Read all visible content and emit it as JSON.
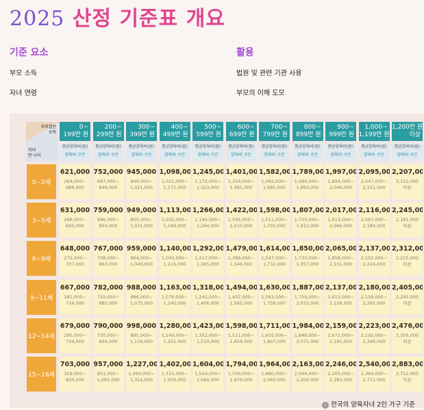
{
  "title": {
    "year": "2025",
    "rest": "산정 기준표 개요"
  },
  "sections": {
    "left": {
      "heading": "기준 요소",
      "items": [
        "부모 소득",
        "자녀 연령"
      ]
    },
    "right": {
      "heading": "활용",
      "items": [
        "법원 및 관련 기관 사용",
        "부모의 이해 도모"
      ]
    }
  },
  "table": {
    "corner_top": "부모합산\n소득",
    "corner_bottom": "자녀\n만 나이",
    "subheader_a": "평균양육비(원)",
    "subheader_b": "양육비 구간",
    "columns": [
      {
        "line1": "0~",
        "line2": "199만 원"
      },
      {
        "line1": "200~",
        "line2": "299만 원"
      },
      {
        "line1": "300~",
        "line2": "399만 원"
      },
      {
        "line1": "400~",
        "line2": "499만 원"
      },
      {
        "line1": "500~",
        "line2": "599만 원"
      },
      {
        "line1": "600~",
        "line2": "699만 원"
      },
      {
        "line1": "700~",
        "line2": "799만 원"
      },
      {
        "line1": "800~",
        "line2": "899만 원"
      },
      {
        "line1": "900~",
        "line2": "999만 원"
      },
      {
        "line1": "1,000~",
        "line2": "1,199만 원"
      },
      {
        "line1": "1,200만 원",
        "line2": "이상"
      }
    ],
    "rows": [
      {
        "label": "0~2세",
        "cells": [
          {
            "v": "621,000",
            "r1": "264,000~",
            "r2": "686,000"
          },
          {
            "v": "752,000",
            "r1": "687,000~",
            "r2": "848,000"
          },
          {
            "v": "945,000",
            "r1": "849,000~",
            "r2": "1,021,000"
          },
          {
            "v": "1,098,000",
            "r1": "1,022,000~",
            "r2": "1,171,000"
          },
          {
            "v": "1,245,000",
            "r1": "1,172,000~",
            "r2": "1,323,000"
          },
          {
            "v": "1,401,000",
            "r1": "1,324,000~",
            "r2": "1,491,000"
          },
          {
            "v": "1,582,000",
            "r1": "1,492,000~",
            "r2": "1,685,000"
          },
          {
            "v": "1,789,000",
            "r1": "1,686,000~",
            "r2": "1,893,000"
          },
          {
            "v": "1,997,000",
            "r1": "1,894,000~",
            "r2": "2,046,000"
          },
          {
            "v": "2,095,000",
            "r1": "2,047,000~",
            "r2": "2,151,000"
          },
          {
            "v": "2,207,000",
            "r1": "2,152,000",
            "r2": "이상"
          }
        ]
      },
      {
        "label": "3~5세",
        "cells": [
          {
            "v": "631,000",
            "r1": "268,000~",
            "r2": "695,000"
          },
          {
            "v": "759,000",
            "r1": "696,000~",
            "r2": "854,000"
          },
          {
            "v": "949,000",
            "r1": "855,000~",
            "r2": "1,031,000"
          },
          {
            "v": "1,113,000",
            "r1": "1,032,000~",
            "r2": "1,189,000"
          },
          {
            "v": "1,266,000",
            "r1": "1,190,000~",
            "r2": "1,344,000"
          },
          {
            "v": "1,422,000",
            "r1": "1,345,000~",
            "r2": "1,510,000"
          },
          {
            "v": "1,598,000",
            "r1": "1,511,000~",
            "r2": "1,702,000"
          },
          {
            "v": "1,807,000",
            "r1": "1,703,000~",
            "r2": "1,912,000"
          },
          {
            "v": "2,017,000",
            "r1": "1,913,000~",
            "r2": "2,066,000"
          },
          {
            "v": "2,116,000",
            "r1": "2,067,000~",
            "r2": "2,180,000"
          },
          {
            "v": "2,245,000",
            "r1": "2,181,000",
            "r2": "이상"
          }
        ]
      },
      {
        "label": "6~8세",
        "cells": [
          {
            "v": "648,000",
            "r1": "272,000~",
            "r2": "707,000"
          },
          {
            "v": "767,000",
            "r1": "708,000~",
            "r2": "863,000"
          },
          {
            "v": "959,000",
            "r1": "864,000~",
            "r2": "1,049,000"
          },
          {
            "v": "1,140,000",
            "r1": "1,050,000~",
            "r2": "1,216,000"
          },
          {
            "v": "1,292,000",
            "r1": "1,217,000~",
            "r2": "1,385,000"
          },
          {
            "v": "1,479,000",
            "r1": "1,386,000~",
            "r2": "1,546,000"
          },
          {
            "v": "1,614,000",
            "r1": "1,547,000~",
            "r2": "1,732,000"
          },
          {
            "v": "1,850,000",
            "r1": "1,733,000~",
            "r2": "1,957,000"
          },
          {
            "v": "2,065,000",
            "r1": "1,958,000~",
            "r2": "2,101,000"
          },
          {
            "v": "2,137,000",
            "r1": "2,102,000~",
            "r2": "2,224,000"
          },
          {
            "v": "2,312,000",
            "r1": "2,225,000",
            "r2": "이상"
          }
        ]
      },
      {
        "label": "9~11세",
        "cells": [
          {
            "v": "667,000",
            "r1": "281,000~",
            "r2": "724,000"
          },
          {
            "v": "782,000",
            "r1": "725,000~",
            "r2": "885,000"
          },
          {
            "v": "988,000",
            "r1": "886,000~",
            "r2": "1,075,000"
          },
          {
            "v": "1,163,000",
            "r1": "1,076,000~",
            "r2": "1,240,000"
          },
          {
            "v": "1,318,000",
            "r1": "1,241,000~",
            "r2": "1,406,000"
          },
          {
            "v": "1,494,000",
            "r1": "1,407,000~",
            "r2": "1,562,000"
          },
          {
            "v": "1,630,000",
            "r1": "1,563,000~",
            "r2": "1,758,000"
          },
          {
            "v": "1,887,000",
            "r1": "1,759,000~",
            "r2": "2,012,000"
          },
          {
            "v": "2,137,000",
            "r1": "2,013,000~",
            "r2": "2,158,000"
          },
          {
            "v": "2,180,000",
            "r1": "2,159,000~",
            "r2": "2,292,000"
          },
          {
            "v": "2,405,000",
            "r1": "2,293,000",
            "r2": "이상"
          }
        ]
      },
      {
        "label": "12~14세",
        "cells": [
          {
            "v": "679,000",
            "r1": "295,000~",
            "r2": "734,000"
          },
          {
            "v": "790,000",
            "r1": "735,000~",
            "r2": "894,000"
          },
          {
            "v": "998,000",
            "r1": "895,000~",
            "r2": "1,139,000"
          },
          {
            "v": "1,280,000",
            "r1": "1,140,000~",
            "r2": "1,351,000"
          },
          {
            "v": "1,423,000",
            "r1": "1,352,000~",
            "r2": "1,510,000"
          },
          {
            "v": "1,598,000",
            "r1": "1,511,000~",
            "r2": "1,654,000"
          },
          {
            "v": "1,711,000",
            "r1": "1,655,000~",
            "r2": "1,847,000"
          },
          {
            "v": "1,984,000",
            "r1": "1,848,000~",
            "r2": "2,071,000"
          },
          {
            "v": "2,159,000",
            "r1": "2,072,000~",
            "r2": "2,191,000"
          },
          {
            "v": "2,223,000",
            "r1": "2,192,000~",
            "r2": "2,349,000"
          },
          {
            "v": "2,476,000",
            "r1": "2,350,000",
            "r2": "이상"
          }
        ]
      },
      {
        "label": "15~18세",
        "cells": [
          {
            "v": "703,000",
            "r1": "319,000~",
            "r2": "830,000"
          },
          {
            "v": "957,000",
            "r1": "831,000~",
            "r2": "1,092,000"
          },
          {
            "v": "1,227,000",
            "r1": "1,093,000~",
            "r2": "1,314,000"
          },
          {
            "v": "1,402,000",
            "r1": "1,315,000~",
            "r2": "1,503,000"
          },
          {
            "v": "1,604,000",
            "r1": "1,504,000~",
            "r2": "1,699,000"
          },
          {
            "v": "1,794,000",
            "r1": "1,700,000~",
            "r2": "1,879,000"
          },
          {
            "v": "1,964,000",
            "r1": "1,880,000~",
            "r2": "2,063,000"
          },
          {
            "v": "2,163,000",
            "r1": "2,064,000~",
            "r2": "2,204,000"
          },
          {
            "v": "2,246,000",
            "r1": "2,205,000~",
            "r2": "2,393,000"
          },
          {
            "v": "2,540,000",
            "r1": "2,394,000~",
            "r2": "2,711,000"
          },
          {
            "v": "2,883,000",
            "r1": "2,712,000",
            "r2": "이상"
          }
        ]
      }
    ],
    "footer": "전국의 양육자녀 2인 가구 기준"
  }
}
